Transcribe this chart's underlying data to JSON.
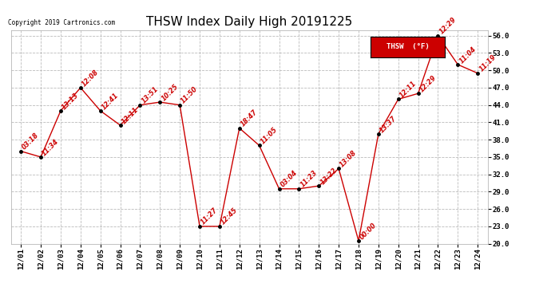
{
  "title": "THSW Index Daily High 20191225",
  "copyright": "Copyright 2019 Cartronics.com",
  "legend_label": "THSW  (°F)",
  "x_labels": [
    "12/01",
    "12/02",
    "12/03",
    "12/04",
    "12/05",
    "12/06",
    "12/07",
    "12/08",
    "12/09",
    "12/10",
    "12/11",
    "12/12",
    "12/13",
    "12/14",
    "12/15",
    "12/16",
    "12/17",
    "12/18",
    "12/19",
    "12/20",
    "12/21",
    "12/22",
    "12/23",
    "12/24"
  ],
  "y_values": [
    36.0,
    35.0,
    43.0,
    47.0,
    43.0,
    40.5,
    44.0,
    44.5,
    44.0,
    23.0,
    23.0,
    40.0,
    37.0,
    29.5,
    29.5,
    30.0,
    33.0,
    20.5,
    39.0,
    45.0,
    46.0,
    56.0,
    51.0,
    49.5
  ],
  "time_labels": [
    "03:18",
    "11:34",
    "13:13",
    "12:08",
    "12:41",
    "12:11",
    "13:51",
    "10:25",
    "11:50",
    "11:27",
    "12:45",
    "18:47",
    "11:05",
    "03:04",
    "11:23",
    "13:22",
    "13:08",
    "00:00",
    "13:37",
    "12:11",
    "12:29",
    "12:29",
    "11:04",
    "11:19"
  ],
  "line_color": "#cc0000",
  "marker_color": "#000000",
  "bg_color": "#ffffff",
  "grid_color": "#bbbbbb",
  "ylim": [
    20.0,
    57.0
  ],
  "yticks": [
    20.0,
    23.0,
    26.0,
    29.0,
    32.0,
    35.0,
    38.0,
    41.0,
    44.0,
    47.0,
    50.0,
    53.0,
    56.0
  ],
  "title_fontsize": 11,
  "label_fontsize": 6.5,
  "time_fontsize": 5.8,
  "legend_bg": "#cc0000",
  "legend_text_color": "#ffffff"
}
